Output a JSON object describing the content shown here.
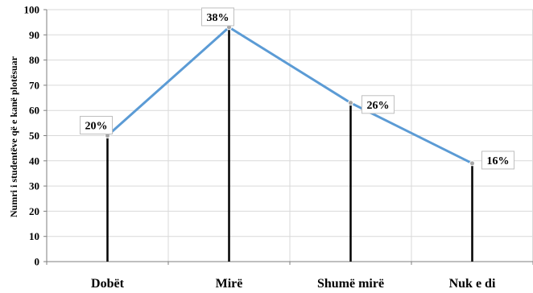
{
  "chart_data": {
    "type": "line",
    "categories": [
      "Dobët",
      "Mirë",
      "Shumë mirë",
      "Nuk e di"
    ],
    "values": [
      50,
      93,
      63,
      39
    ],
    "data_labels": [
      "20%",
      "38%",
      "26%",
      "16%"
    ],
    "ylabel": "Numri i studentëve që e kanë plotësuar",
    "xlabel": "",
    "ylim": [
      0,
      100
    ],
    "yticks": [
      0,
      10,
      20,
      30,
      40,
      50,
      60,
      70,
      80,
      90,
      100
    ],
    "grid": true,
    "drop_lines": true,
    "colors": {
      "line": "#5b9bd5",
      "drop_line": "#000000",
      "grid": "#d9d9d9",
      "marker": "#a5a5a5"
    }
  }
}
